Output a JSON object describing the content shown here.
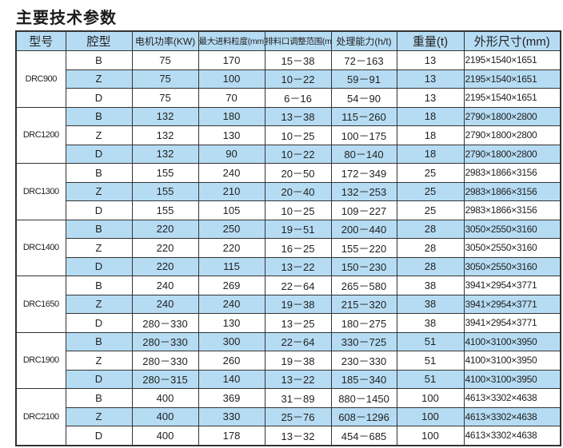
{
  "title": "主要技术参数",
  "colors": {
    "header_bg": "#b6dcf3",
    "band_bg": "#b6dcf3",
    "border": "#333333"
  },
  "headers": [
    "型号",
    "腔型",
    "电机功率(KW)",
    "最大进料粒度(mm)",
    "排料口调整范围(mm)",
    "处理能力(h/t)",
    "重量(t)",
    "外形尺寸(mm)"
  ],
  "models": [
    {
      "model": "DRC900",
      "rows": [
        [
          "B",
          "75",
          "170",
          "15－38",
          "72－163",
          "13",
          "2195×1540×1651"
        ],
        [
          "Z",
          "75",
          "100",
          "10－22",
          "59－91",
          "13",
          "2195×1540×1651"
        ],
        [
          "D",
          "75",
          "70",
          "6－16",
          "54－90",
          "13",
          "2195×1540×1651"
        ]
      ]
    },
    {
      "model": "DRC1200",
      "rows": [
        [
          "B",
          "132",
          "180",
          "13－38",
          "115－260",
          "18",
          "2790×1800×2800"
        ],
        [
          "Z",
          "132",
          "130",
          "10－25",
          "100－175",
          "18",
          "2790×1800×2800"
        ],
        [
          "D",
          "132",
          "90",
          "10－22",
          "80－140",
          "18",
          "2790×1800×2800"
        ]
      ]
    },
    {
      "model": "DRC1300",
      "rows": [
        [
          "B",
          "155",
          "240",
          "20－50",
          "172－349",
          "25",
          "2983×1866×3156"
        ],
        [
          "Z",
          "155",
          "210",
          "20－40",
          "132－253",
          "25",
          "2983×1866×3156"
        ],
        [
          "D",
          "155",
          "105",
          "10－25",
          "109－227",
          "25",
          "2983×1866×3156"
        ]
      ]
    },
    {
      "model": "DRC1400",
      "rows": [
        [
          "B",
          "220",
          "250",
          "19－51",
          "200－440",
          "28",
          "3050×2550×3160"
        ],
        [
          "Z",
          "220",
          "220",
          "16－25",
          "155－220",
          "28",
          "3050×2550×3160"
        ],
        [
          "D",
          "220",
          "115",
          "13－22",
          "150－230",
          "28",
          "3050×2550×3160"
        ]
      ]
    },
    {
      "model": "DRC1650",
      "rows": [
        [
          "B",
          "240",
          "269",
          "22－64",
          "265－580",
          "38",
          "3941×2954×3771"
        ],
        [
          "Z",
          "240",
          "240",
          "19－38",
          "215－320",
          "38",
          "3941×2954×3771"
        ],
        [
          "D",
          "280－330",
          "130",
          "13－25",
          "180－275",
          "38",
          "3941×2954×3771"
        ]
      ]
    },
    {
      "model": "DRC1900",
      "rows": [
        [
          "B",
          "280－330",
          "300",
          "22－64",
          "330－725",
          "51",
          "4100×3100×3950"
        ],
        [
          "Z",
          "280－330",
          "260",
          "19－38",
          "230－330",
          "51",
          "4100×3100×3950"
        ],
        [
          "D",
          "280－315",
          "140",
          "13－22",
          "185－340",
          "51",
          "4100×3100×3950"
        ]
      ]
    },
    {
      "model": "DRC2100",
      "rows": [
        [
          "B",
          "400",
          "369",
          "31－89",
          "880－1450",
          "100",
          "4613×3302×4638"
        ],
        [
          "Z",
          "400",
          "330",
          "25－76",
          "608－1296",
          "100",
          "4613×3302×4638"
        ],
        [
          "D",
          "400",
          "178",
          "13－32",
          "454－685",
          "100",
          "4613×3302×4638"
        ]
      ]
    }
  ]
}
